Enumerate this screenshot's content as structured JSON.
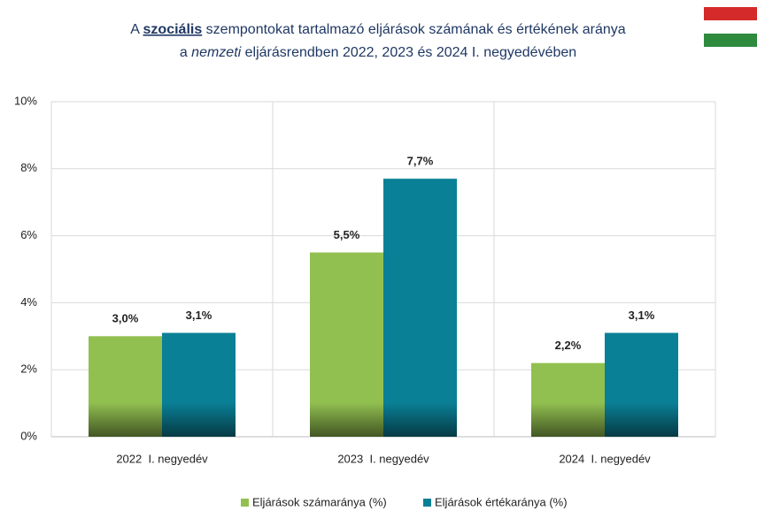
{
  "chart_data": {
    "type": "bar",
    "title_lines": [
      [
        {
          "text": "A ",
          "style": "normal"
        },
        {
          "text": "szociális",
          "style": "bold-underline"
        },
        {
          "text": " szempontokat tartalmazó eljárások számának és értékének aránya",
          "style": "normal"
        }
      ],
      [
        {
          "text": "a ",
          "style": "normal"
        },
        {
          "text": "nemzeti",
          "style": "italic"
        },
        {
          "text": " eljárásrendben 2022, 2023 és 2024 I. negyedévében",
          "style": "normal"
        }
      ]
    ],
    "categories": [
      "2022  I. negyedév",
      "2023  I. negyedév",
      "2024  I. negyedév"
    ],
    "series": [
      {
        "name": "Eljárások számaránya (%)",
        "color": "#92c050",
        "label_color": "#4f6228",
        "values": [
          3.0,
          5.5,
          2.2
        ],
        "value_labels": [
          "3,0%",
          "5,5%",
          "2,2%"
        ]
      },
      {
        "name": "Eljárások értékaránya (%)",
        "color": "#0a8096",
        "label_color": "#1f4e79",
        "values": [
          3.1,
          7.7,
          3.1
        ],
        "value_labels": [
          "3,1%",
          "7,7%",
          "3,1%"
        ]
      }
    ],
    "ylim": [
      0,
      10
    ],
    "yticks": [
      {
        "value": 0,
        "label": "0%"
      },
      {
        "value": 2,
        "label": "2%"
      },
      {
        "value": 4,
        "label": "4%"
      },
      {
        "value": 6,
        "label": "6%"
      },
      {
        "value": 8,
        "label": "8%"
      },
      {
        "value": 10,
        "label": "10%"
      }
    ],
    "grid": true,
    "legend": "bottom"
  }
}
